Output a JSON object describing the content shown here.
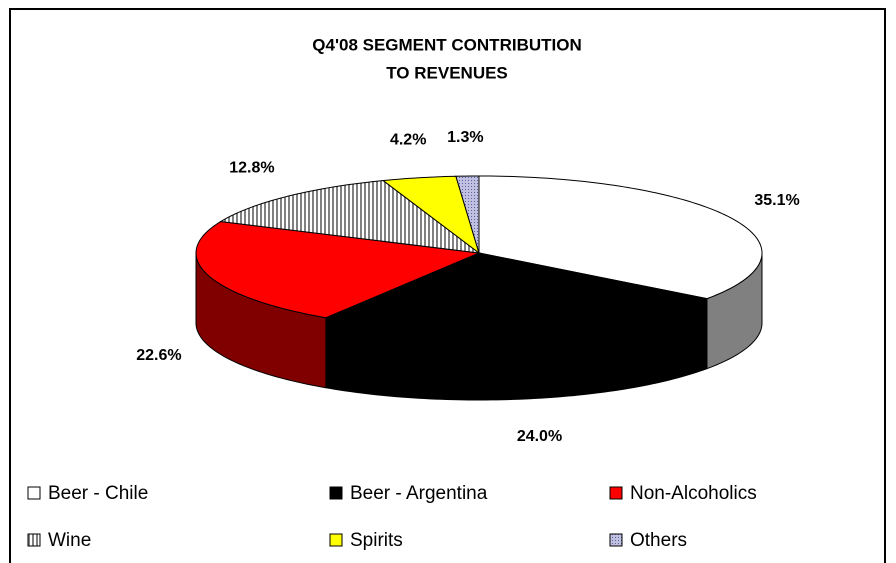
{
  "chart_data": {
    "type": "pie3d",
    "title": [
      "Q4'08 SEGMENT CONTRIBUTION",
      "TO REVENUES"
    ],
    "categories": [
      "Beer - Chile",
      "Beer - Argentina",
      "Non-Alcoholics",
      "Wine",
      "Spirits",
      "Others"
    ],
    "values": [
      35.1,
      24.0,
      22.6,
      12.8,
      4.2,
      1.3
    ],
    "value_labels": [
      "35.1%",
      "24.0%",
      "22.6%",
      "12.8%",
      "4.2%",
      "1.3%"
    ],
    "colors": [
      "#ffffff",
      "#000000",
      "#ff0000",
      "url(#hatch)",
      "#ffff00",
      "url(#dots)"
    ],
    "side_colors": [
      "#808080",
      "#000000",
      "#800000",
      "#606060",
      "#808000",
      "#6a6a8a"
    ],
    "legend": "bottom"
  }
}
